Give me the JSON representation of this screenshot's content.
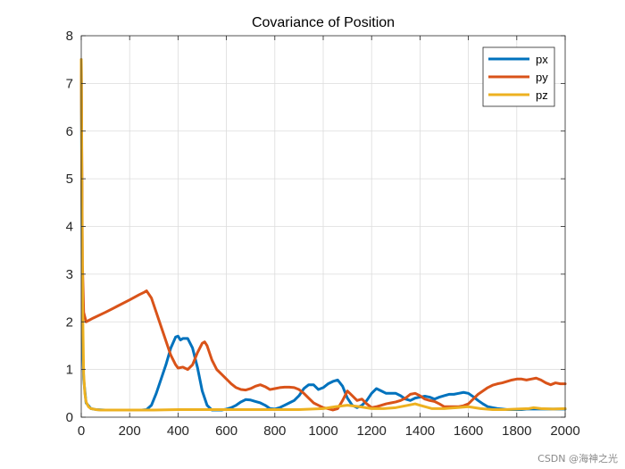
{
  "chart_data": {
    "type": "line",
    "title": "Covariance of Position",
    "xlabel": "",
    "ylabel": "",
    "xlim": [
      0,
      2000
    ],
    "ylim": [
      0,
      8
    ],
    "xticks": [
      0,
      200,
      400,
      600,
      800,
      1000,
      1200,
      1400,
      1600,
      1800,
      2000
    ],
    "yticks": [
      0,
      1,
      2,
      3,
      4,
      5,
      6,
      7,
      8
    ],
    "grid": true,
    "legend_position": "top-right",
    "series": [
      {
        "name": "px",
        "color": "#0072BD",
        "x": [
          0,
          5,
          10,
          20,
          40,
          60,
          100,
          150,
          200,
          250,
          270,
          290,
          310,
          330,
          350,
          370,
          390,
          400,
          410,
          420,
          440,
          460,
          480,
          500,
          520,
          540,
          560,
          580,
          600,
          620,
          640,
          660,
          680,
          700,
          720,
          740,
          760,
          780,
          800,
          820,
          840,
          860,
          880,
          900,
          920,
          940,
          960,
          980,
          1000,
          1020,
          1040,
          1060,
          1080,
          1100,
          1120,
          1140,
          1160,
          1180,
          1200,
          1220,
          1240,
          1260,
          1280,
          1300,
          1320,
          1340,
          1360,
          1380,
          1400,
          1420,
          1440,
          1460,
          1480,
          1500,
          1520,
          1540,
          1560,
          1580,
          1600,
          1620,
          1640,
          1660,
          1680,
          1700,
          1720,
          1740,
          1760,
          1780,
          1800,
          1820,
          1840,
          1860,
          1880,
          1900,
          1920,
          1940,
          1960,
          1980,
          2000
        ],
        "y": [
          7.5,
          1.6,
          0.8,
          0.3,
          0.18,
          0.16,
          0.15,
          0.15,
          0.15,
          0.15,
          0.16,
          0.25,
          0.5,
          0.8,
          1.1,
          1.45,
          1.68,
          1.7,
          1.62,
          1.65,
          1.65,
          1.45,
          1.05,
          0.55,
          0.25,
          0.15,
          0.15,
          0.15,
          0.17,
          0.2,
          0.25,
          0.32,
          0.37,
          0.36,
          0.33,
          0.3,
          0.25,
          0.18,
          0.17,
          0.2,
          0.25,
          0.3,
          0.35,
          0.45,
          0.6,
          0.68,
          0.68,
          0.58,
          0.62,
          0.7,
          0.75,
          0.78,
          0.65,
          0.4,
          0.25,
          0.2,
          0.25,
          0.35,
          0.5,
          0.6,
          0.55,
          0.5,
          0.5,
          0.5,
          0.45,
          0.38,
          0.35,
          0.4,
          0.42,
          0.44,
          0.42,
          0.38,
          0.42,
          0.45,
          0.48,
          0.48,
          0.5,
          0.52,
          0.5,
          0.43,
          0.35,
          0.28,
          0.22,
          0.2,
          0.18,
          0.17,
          0.16,
          0.16,
          0.16,
          0.16,
          0.17,
          0.17,
          0.17,
          0.17,
          0.17,
          0.17,
          0.17,
          0.17,
          0.17
        ]
      },
      {
        "name": "py",
        "color": "#D95319",
        "x": [
          0,
          5,
          10,
          20,
          50,
          100,
          150,
          200,
          240,
          260,
          270,
          290,
          310,
          330,
          350,
          370,
          390,
          400,
          420,
          440,
          460,
          480,
          500,
          510,
          520,
          540,
          560,
          580,
          600,
          620,
          640,
          660,
          680,
          700,
          720,
          740,
          760,
          780,
          800,
          820,
          840,
          860,
          880,
          900,
          920,
          940,
          960,
          980,
          1000,
          1020,
          1040,
          1060,
          1080,
          1100,
          1120,
          1140,
          1160,
          1180,
          1200,
          1220,
          1240,
          1260,
          1280,
          1300,
          1320,
          1340,
          1360,
          1380,
          1400,
          1420,
          1440,
          1460,
          1480,
          1500,
          1520,
          1540,
          1560,
          1580,
          1600,
          1620,
          1640,
          1660,
          1680,
          1700,
          1720,
          1740,
          1760,
          1780,
          1800,
          1820,
          1840,
          1860,
          1880,
          1900,
          1920,
          1940,
          1960,
          1980,
          2000
        ],
        "y": [
          7.5,
          3.2,
          2.2,
          2.0,
          2.08,
          2.2,
          2.33,
          2.46,
          2.57,
          2.62,
          2.65,
          2.5,
          2.2,
          1.9,
          1.6,
          1.3,
          1.1,
          1.03,
          1.05,
          1.0,
          1.1,
          1.35,
          1.55,
          1.58,
          1.5,
          1.2,
          1.0,
          0.9,
          0.8,
          0.7,
          0.62,
          0.58,
          0.57,
          0.6,
          0.65,
          0.68,
          0.64,
          0.58,
          0.6,
          0.62,
          0.63,
          0.63,
          0.62,
          0.58,
          0.5,
          0.4,
          0.3,
          0.25,
          0.2,
          0.18,
          0.15,
          0.18,
          0.35,
          0.55,
          0.45,
          0.35,
          0.38,
          0.28,
          0.2,
          0.22,
          0.25,
          0.28,
          0.3,
          0.32,
          0.35,
          0.4,
          0.48,
          0.5,
          0.45,
          0.38,
          0.35,
          0.33,
          0.28,
          0.22,
          0.22,
          0.22,
          0.22,
          0.24,
          0.28,
          0.38,
          0.48,
          0.55,
          0.62,
          0.67,
          0.7,
          0.72,
          0.75,
          0.78,
          0.8,
          0.8,
          0.78,
          0.8,
          0.82,
          0.78,
          0.72,
          0.68,
          0.72,
          0.7,
          0.7
        ]
      },
      {
        "name": "pz",
        "color": "#EDB120",
        "x": [
          0,
          3,
          6,
          10,
          15,
          20,
          30,
          40,
          60,
          80,
          100,
          150,
          200,
          300,
          400,
          500,
          600,
          700,
          800,
          900,
          1000,
          1050,
          1100,
          1150,
          1200,
          1250,
          1300,
          1350,
          1380,
          1400,
          1450,
          1500,
          1550,
          1600,
          1650,
          1700,
          1750,
          1800,
          1850,
          1870,
          1900,
          1950,
          2000
        ],
        "y": [
          7.5,
          4.5,
          2.2,
          0.9,
          0.5,
          0.32,
          0.22,
          0.18,
          0.16,
          0.15,
          0.15,
          0.15,
          0.15,
          0.15,
          0.16,
          0.16,
          0.16,
          0.16,
          0.16,
          0.16,
          0.18,
          0.22,
          0.25,
          0.22,
          0.18,
          0.18,
          0.2,
          0.25,
          0.28,
          0.25,
          0.18,
          0.18,
          0.2,
          0.22,
          0.18,
          0.16,
          0.16,
          0.17,
          0.18,
          0.2,
          0.18,
          0.17,
          0.18
        ]
      }
    ]
  },
  "watermark": "CSDN @海神之光"
}
